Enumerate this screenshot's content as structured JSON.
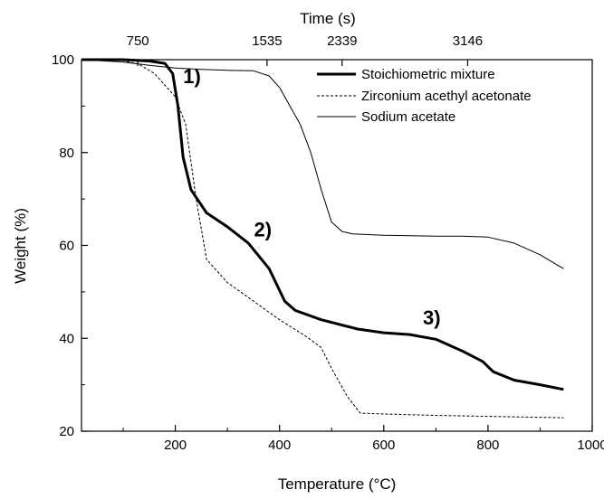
{
  "chart_data": {
    "type": "line",
    "xlabel": "Temperature (°C)",
    "ylabel": "Weight (%)",
    "top_xlabel": "Time (s)",
    "xlim": [
      20,
      1000
    ],
    "ylim": [
      20,
      100
    ],
    "x_ticks": [
      200,
      400,
      600,
      800,
      1000
    ],
    "y_ticks": [
      20,
      40,
      60,
      80,
      100
    ],
    "top_ticks": [
      {
        "temp": 128,
        "label": "750"
      },
      {
        "temp": 376,
        "label": "1535"
      },
      {
        "temp": 520,
        "label": "2339"
      },
      {
        "temp": 761,
        "label": "3146"
      }
    ],
    "grid": false,
    "legend_position": "top-right",
    "series": [
      {
        "name": "Stoichiometric mixture",
        "style": "thick",
        "color": "#000000",
        "x": [
          20,
          100,
          150,
          180,
          195,
          205,
          215,
          230,
          260,
          300,
          340,
          380,
          410,
          430,
          480,
          550,
          600,
          650,
          700,
          750,
          790,
          810,
          850,
          900,
          945
        ],
        "y": [
          100,
          100,
          99.7,
          99.2,
          97,
          90,
          79,
          72,
          67,
          64,
          60.5,
          55,
          48,
          46,
          44,
          42,
          41.2,
          40.8,
          39.8,
          37.3,
          35,
          32.8,
          31,
          30,
          29
        ]
      },
      {
        "name": "Zirconium acethyl acetonate",
        "style": "dashed",
        "color": "#000000",
        "x": [
          20,
          100,
          130,
          160,
          200,
          220,
          240,
          260,
          300,
          350,
          400,
          450,
          480,
          500,
          530,
          555,
          600,
          700,
          800,
          945
        ],
        "y": [
          100,
          99.8,
          99,
          97,
          92,
          86,
          70,
          57,
          52,
          48,
          44,
          40.5,
          38,
          33.5,
          27.5,
          23.9,
          23.7,
          23.4,
          23.2,
          22.9
        ],
        "end_label": ""
      },
      {
        "name": "Sodium acetate",
        "style": "thin",
        "color": "#000000",
        "x": [
          20,
          100,
          150,
          200,
          250,
          300,
          350,
          380,
          400,
          420,
          440,
          460,
          480,
          500,
          520,
          540,
          600,
          650,
          700,
          750,
          800,
          850,
          900,
          945
        ],
        "y": [
          100,
          99.5,
          98.8,
          98.2,
          97.9,
          97.7,
          97.6,
          96.5,
          94,
          90,
          86,
          80,
          72,
          65,
          63,
          62.5,
          62.2,
          62.1,
          62,
          62,
          61.8,
          60.5,
          58,
          55
        ]
      }
    ],
    "annotations": [
      {
        "text": "1)",
        "x": 232,
        "y": 96.5
      },
      {
        "text": "2)",
        "x": 368,
        "y": 63.5
      },
      {
        "text": "3)",
        "x": 692,
        "y": 44.5
      }
    ]
  }
}
